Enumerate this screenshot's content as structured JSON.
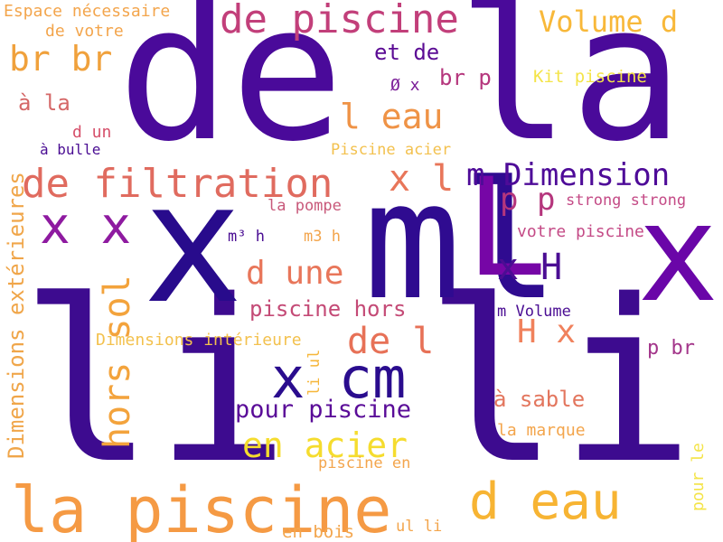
{
  "words": [
    {
      "text": "de la",
      "color": "#4a0a9a"
    },
    {
      "text": "li li",
      "color": "#3d0b8f"
    },
    {
      "text": "x",
      "color": "#280b8c"
    },
    {
      "text": "ml",
      "color": "#2f0b90"
    },
    {
      "text": "x",
      "color": "#6a06a8"
    },
    {
      "text": "L",
      "color": "#7606a6"
    },
    {
      "text": "la piscine",
      "color": "#f59a44"
    },
    {
      "text": "de piscine",
      "color": "#c23f7a"
    },
    {
      "text": "de filtration",
      "color": "#e06b5f"
    },
    {
      "text": "x x",
      "color": "#8e1aa0"
    },
    {
      "text": "d eau",
      "color": "#f7b433"
    },
    {
      "text": "m Dimension",
      "color": "#4e0b98"
    },
    {
      "text": "br br",
      "color": "#f0a13c"
    },
    {
      "text": "Volume d",
      "color": "#f8b839"
    },
    {
      "text": "l eau",
      "color": "#ef9346"
    },
    {
      "text": "x cm",
      "color": "#2a0c8e"
    },
    {
      "text": "hors sol",
      "color": "#f3a33c"
    },
    {
      "text": "en acier",
      "color": "#f5dc2e"
    },
    {
      "text": "x l",
      "color": "#e8765a"
    },
    {
      "text": "p p",
      "color": "#b5367d"
    },
    {
      "text": "x H",
      "color": "#4b0d93"
    },
    {
      "text": "d une",
      "color": "#e8765a"
    },
    {
      "text": "de l",
      "color": "#e77157"
    },
    {
      "text": "H x",
      "color": "#f0815c"
    },
    {
      "text": "Dimensions extérieures",
      "color": "#f0a64a"
    },
    {
      "text": "pour piscine",
      "color": "#5a0c98"
    },
    {
      "text": "piscine hors",
      "color": "#c44a76"
    },
    {
      "text": "et de",
      "color": "#5b0b94"
    },
    {
      "text": "br p",
      "color": "#b5367d"
    },
    {
      "text": "Ø x",
      "color": "#7b1d98"
    },
    {
      "text": "Kit piscine",
      "color": "#f4e448"
    },
    {
      "text": "Espace nécessaire",
      "color": "#f3a54c"
    },
    {
      "text": "de votre",
      "color": "#f3a54c"
    },
    {
      "text": "à la",
      "color": "#d56868"
    },
    {
      "text": "d un",
      "color": "#d64f6a"
    },
    {
      "text": "à bulle",
      "color": "#4a0d93"
    },
    {
      "text": "Piscine acier",
      "color": "#f3c14e"
    },
    {
      "text": "strong strong",
      "color": "#c44a86"
    },
    {
      "text": "la pompe",
      "color": "#c8597a"
    },
    {
      "text": "votre piscine",
      "color": "#c44a86"
    },
    {
      "text": "m³ h",
      "color": "#4a0d93"
    },
    {
      "text": "m3 h",
      "color": "#f3a54c"
    },
    {
      "text": "Dimensions intérieure",
      "color": "#f3c14e"
    },
    {
      "text": "m Volume",
      "color": "#4a0d93"
    },
    {
      "text": "p br",
      "color": "#a3358a"
    },
    {
      "text": "li ul",
      "color": "#f6b63a"
    },
    {
      "text": "à sable",
      "color": "#e3765e"
    },
    {
      "text": "la marque",
      "color": "#f3a54c"
    },
    {
      "text": "piscine en",
      "color": "#f3a54c"
    },
    {
      "text": "pour le",
      "color": "#f4e448"
    },
    {
      "text": "ul li",
      "color": "#f3a54c"
    },
    {
      "text": "en bois",
      "color": "#f3a54c"
    }
  ]
}
